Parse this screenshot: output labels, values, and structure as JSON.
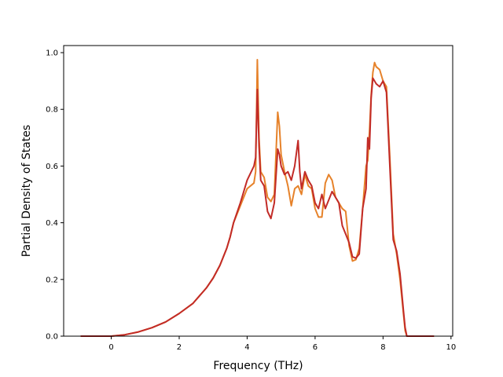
{
  "chart_data": {
    "type": "line",
    "title": "",
    "xlabel": "Frequency (THz)",
    "ylabel": "Partial Density of States",
    "xlim": [
      -1.4,
      10.05
    ],
    "ylim": [
      0.0,
      1.025
    ],
    "grid": false,
    "legend": "none",
    "xticks": [
      0,
      2,
      4,
      6,
      8,
      10
    ],
    "yticks": [
      0.0,
      0.2,
      0.4,
      0.6,
      0.8,
      1.0
    ],
    "xtick_labels": [
      "0",
      "2",
      "4",
      "6",
      "8",
      "10"
    ],
    "ytick_labels": [
      "0.0",
      "0.2",
      "0.4",
      "0.6",
      "0.8",
      "1.0"
    ],
    "series": [
      {
        "color": "#e6822a",
        "x": [
          -0.9,
          0,
          0.4,
          0.8,
          1.2,
          1.6,
          2.0,
          2.4,
          2.8,
          3.0,
          3.2,
          3.4,
          3.5,
          3.6,
          3.8,
          4.0,
          4.2,
          4.25,
          4.3,
          4.35,
          4.4,
          4.5,
          4.6,
          4.7,
          4.8,
          4.9,
          4.95,
          5.0,
          5.1,
          5.2,
          5.3,
          5.4,
          5.5,
          5.6,
          5.7,
          5.8,
          5.9,
          6.0,
          6.1,
          6.2,
          6.3,
          6.4,
          6.5,
          6.6,
          6.7,
          6.8,
          6.9,
          7.0,
          7.1,
          7.2,
          7.3,
          7.4,
          7.5,
          7.55,
          7.6,
          7.65,
          7.7,
          7.75,
          7.8,
          7.9,
          8.0,
          8.1,
          8.2,
          8.3,
          8.4,
          8.5,
          8.6,
          8.65,
          8.7,
          9.5
        ],
        "y": [
          0,
          0,
          0.005,
          0.015,
          0.03,
          0.05,
          0.08,
          0.115,
          0.17,
          0.205,
          0.25,
          0.31,
          0.35,
          0.4,
          0.46,
          0.52,
          0.54,
          0.58,
          0.975,
          0.7,
          0.58,
          0.56,
          0.49,
          0.475,
          0.5,
          0.79,
          0.74,
          0.64,
          0.58,
          0.53,
          0.46,
          0.52,
          0.53,
          0.5,
          0.57,
          0.53,
          0.52,
          0.45,
          0.42,
          0.42,
          0.54,
          0.57,
          0.55,
          0.49,
          0.47,
          0.45,
          0.44,
          0.32,
          0.265,
          0.27,
          0.31,
          0.45,
          0.6,
          0.62,
          0.72,
          0.85,
          0.93,
          0.965,
          0.95,
          0.94,
          0.9,
          0.88,
          0.63,
          0.36,
          0.29,
          0.2,
          0.08,
          0.02,
          0,
          0
        ]
      },
      {
        "color": "#c22b27",
        "x": [
          -0.9,
          0,
          0.4,
          0.8,
          1.2,
          1.6,
          2.0,
          2.4,
          2.8,
          3.0,
          3.2,
          3.4,
          3.5,
          3.6,
          3.8,
          4.0,
          4.2,
          4.25,
          4.3,
          4.35,
          4.4,
          4.5,
          4.6,
          4.7,
          4.8,
          4.9,
          4.95,
          5.0,
          5.1,
          5.2,
          5.3,
          5.4,
          5.5,
          5.55,
          5.6,
          5.7,
          5.8,
          5.9,
          6.0,
          6.1,
          6.2,
          6.3,
          6.4,
          6.5,
          6.6,
          6.7,
          6.8,
          6.9,
          7.0,
          7.1,
          7.2,
          7.3,
          7.4,
          7.5,
          7.55,
          7.6,
          7.65,
          7.7,
          7.75,
          7.8,
          7.9,
          8.0,
          8.1,
          8.2,
          8.3,
          8.4,
          8.5,
          8.6,
          8.65,
          8.7,
          9.5
        ],
        "y": [
          0,
          0,
          0.005,
          0.015,
          0.03,
          0.05,
          0.08,
          0.115,
          0.17,
          0.205,
          0.25,
          0.31,
          0.35,
          0.4,
          0.47,
          0.55,
          0.6,
          0.63,
          0.87,
          0.67,
          0.55,
          0.53,
          0.44,
          0.415,
          0.47,
          0.66,
          0.64,
          0.6,
          0.57,
          0.58,
          0.55,
          0.6,
          0.69,
          0.58,
          0.52,
          0.58,
          0.55,
          0.53,
          0.47,
          0.45,
          0.5,
          0.45,
          0.48,
          0.51,
          0.49,
          0.47,
          0.39,
          0.36,
          0.33,
          0.28,
          0.275,
          0.29,
          0.45,
          0.52,
          0.7,
          0.66,
          0.84,
          0.91,
          0.9,
          0.89,
          0.88,
          0.9,
          0.86,
          0.6,
          0.34,
          0.3,
          0.22,
          0.09,
          0.03,
          0,
          0
        ]
      }
    ]
  }
}
